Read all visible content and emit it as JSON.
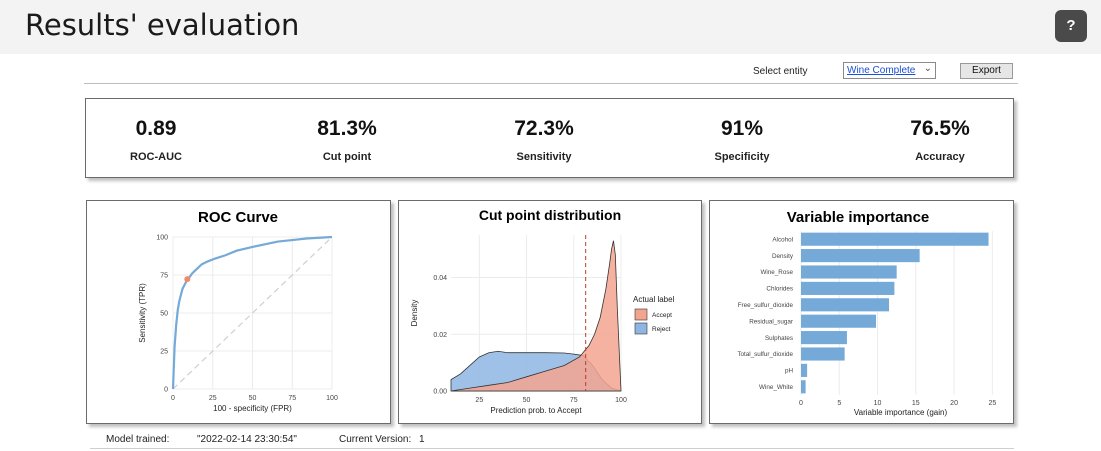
{
  "header": {
    "title": "Results' evaluation",
    "help_label": "?"
  },
  "toolbar": {
    "entity_label": "Select entity",
    "entity_value": "Wine Complete",
    "export_label": "Export"
  },
  "metrics": [
    {
      "value": "0.89",
      "label": "ROC-AUC"
    },
    {
      "value": "81.3%",
      "label": "Cut point"
    },
    {
      "value": "72.3%",
      "label": "Sensitivity"
    },
    {
      "value": "91%",
      "label": "Specificity"
    },
    {
      "value": "76.5%",
      "label": "Accuracy"
    }
  ],
  "footer": {
    "model_trained_label": "Model trained:",
    "model_trained_value": "\"2022-02-14 23:30:54\"",
    "version_label": "Current Version:",
    "version_value": "1"
  },
  "chart_data": [
    {
      "type": "line",
      "title": "ROC Curve",
      "xlabel": "100 - specificity (FPR)",
      "ylabel": "Sensitivity (TPR)",
      "xlim": [
        0,
        100
      ],
      "ylim": [
        0,
        100
      ],
      "xticks": [
        0,
        25,
        50,
        75,
        100
      ],
      "yticks": [
        0,
        25,
        50,
        75,
        100
      ],
      "series": [
        {
          "x": [
            0,
            0.5,
            1,
            2,
            3,
            4,
            5,
            6,
            8,
            9,
            10,
            12,
            15,
            18,
            22,
            27,
            33,
            40,
            48,
            57,
            66,
            75,
            84,
            92,
            100
          ],
          "y": [
            0,
            14,
            28,
            42,
            52,
            58,
            62,
            66,
            70,
            72.3,
            73,
            76,
            79,
            82,
            84,
            86,
            88,
            91,
            93,
            95,
            97,
            98,
            99,
            99.5,
            100
          ]
        }
      ],
      "reference_line": true,
      "marker": {
        "x": 9,
        "y": 72.3
      },
      "colors": {
        "curve": "#74a9d8",
        "marker": "#f08a6a",
        "diagonal": "#cfcfcf"
      }
    },
    {
      "type": "area",
      "title": "Cut point distribution",
      "xlabel": "Prediction prob. to Accept",
      "ylabel": "Density",
      "xlim": [
        10,
        100
      ],
      "ylim": [
        0,
        0.055
      ],
      "xticks": [
        25,
        50,
        75,
        100
      ],
      "yticks": [
        0.0,
        0.02,
        0.04
      ],
      "ytick_labels": [
        "0.00",
        "0.02",
        "0.04"
      ],
      "legend_title": "Actual label",
      "legend_position": "right",
      "cut_point": 81.3,
      "series": [
        {
          "name": "Accept",
          "color": "#f3a48f",
          "x": [
            10,
            20,
            30,
            40,
            50,
            60,
            70,
            78,
            83,
            86,
            89,
            92,
            94,
            95,
            96,
            97,
            98,
            100
          ],
          "y": [
            0.0,
            0.001,
            0.002,
            0.003,
            0.005,
            0.007,
            0.009,
            0.012,
            0.016,
            0.02,
            0.026,
            0.036,
            0.045,
            0.05,
            0.053,
            0.048,
            0.03,
            0.0
          ]
        },
        {
          "name": "Reject",
          "color": "#8fb6e3",
          "x": [
            10,
            15,
            20,
            25,
            30,
            35,
            40,
            50,
            60,
            70,
            75,
            80,
            85,
            90,
            95,
            100
          ],
          "y": [
            0.004,
            0.006,
            0.009,
            0.012,
            0.0135,
            0.014,
            0.0135,
            0.0135,
            0.0135,
            0.0134,
            0.013,
            0.0125,
            0.009,
            0.004,
            0.001,
            0.0
          ]
        }
      ]
    },
    {
      "type": "bar",
      "orientation": "horizontal",
      "title": "Variable importance",
      "xlabel": "Variable importance (gain)",
      "xlim": [
        0,
        26
      ],
      "xticks": [
        0,
        5,
        10,
        15,
        20,
        25
      ],
      "categories": [
        "Alcohol",
        "Density",
        "Wine_Rose",
        "Chlorides",
        "Free_sulfur_dioxide",
        "Residual_sugar",
        "Sulphates",
        "Total_sulfur_dioxide",
        "pH",
        "Wine_White"
      ],
      "values": [
        24.5,
        15.5,
        12.5,
        12.2,
        11.5,
        9.8,
        6.0,
        5.7,
        0.8,
        0.6
      ],
      "colors": {
        "bar": "#74a9d8"
      }
    }
  ]
}
